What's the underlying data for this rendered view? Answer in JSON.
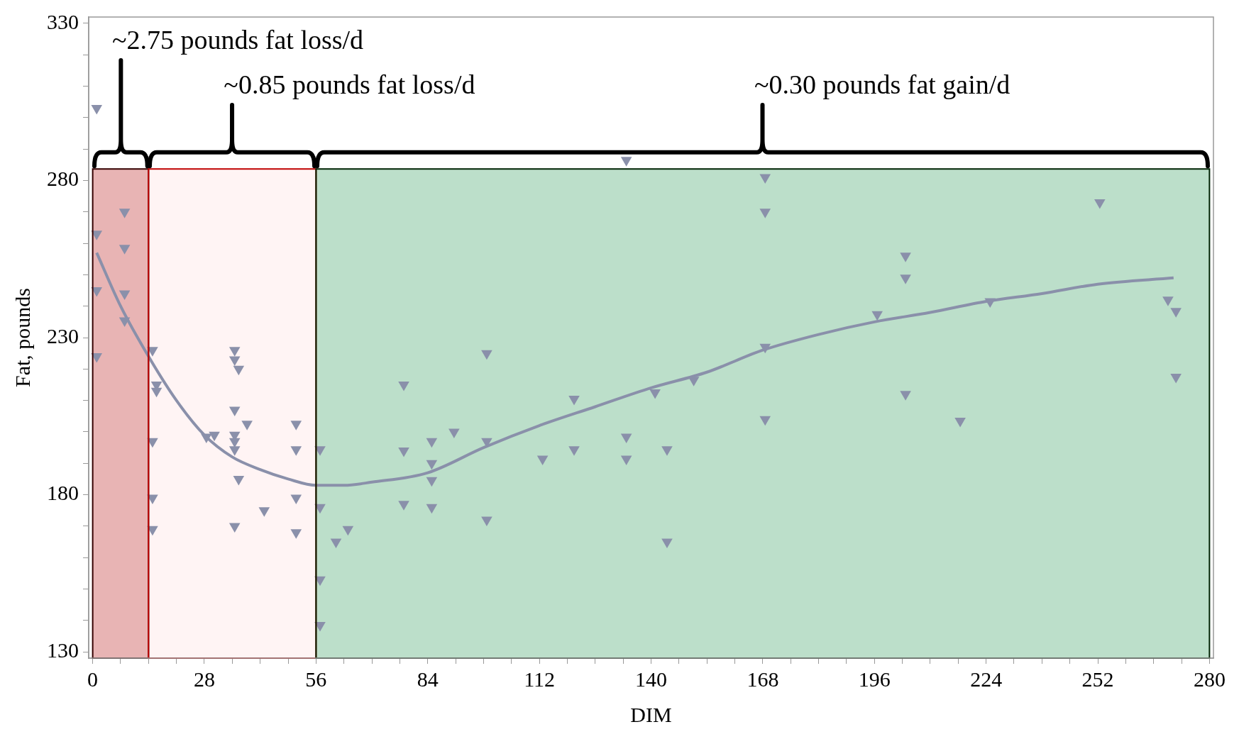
{
  "chart_data": {
    "type": "scatter",
    "xlabel": "DIM",
    "ylabel": "Fat, pounds",
    "xlim": [
      -1,
      281
    ],
    "ylim": [
      128,
      332
    ],
    "xticks": [
      0,
      {
        "value": 7,
        "label": null
      },
      {
        "value": 14,
        "label": null
      },
      {
        "value": 21,
        "label": null
      },
      28,
      {
        "value": 35,
        "label": null
      },
      {
        "value": 42,
        "label": null
      },
      {
        "value": 49,
        "label": null
      },
      56,
      {
        "value": 63,
        "label": null
      },
      {
        "value": 70,
        "label": null
      },
      {
        "value": 77,
        "label": null
      },
      84,
      {
        "value": 91,
        "label": null
      },
      {
        "value": 98,
        "label": null
      },
      {
        "value": 105,
        "label": null
      },
      112,
      {
        "value": 119,
        "label": null
      },
      {
        "value": 126,
        "label": null
      },
      {
        "value": 133,
        "label": null
      },
      140,
      {
        "value": 147,
        "label": null
      },
      {
        "value": 154,
        "label": null
      },
      {
        "value": 161,
        "label": null
      },
      168,
      {
        "value": 175,
        "label": null
      },
      {
        "value": 182,
        "label": null
      },
      {
        "value": 189,
        "label": null
      },
      196,
      {
        "value": 203,
        "label": null
      },
      {
        "value": 210,
        "label": null
      },
      {
        "value": 217,
        "label": null
      },
      224,
      {
        "value": 231,
        "label": null
      },
      {
        "value": 238,
        "label": null
      },
      {
        "value": 245,
        "label": null
      },
      252,
      {
        "value": 259,
        "label": null
      },
      {
        "value": 266,
        "label": null
      },
      {
        "value": 273,
        "label": null
      },
      280
    ],
    "yticks": [
      130,
      {
        "value": 140,
        "label": null
      },
      {
        "value": 150,
        "label": null
      },
      {
        "value": 160,
        "label": null
      },
      {
        "value": 170,
        "label": null
      },
      180,
      {
        "value": 190,
        "label": null
      },
      {
        "value": 200,
        "label": null
      },
      {
        "value": 210,
        "label": null
      },
      {
        "value": 220,
        "label": null
      },
      230,
      {
        "value": 240,
        "label": null
      },
      {
        "value": 250,
        "label": null
      },
      {
        "value": 260,
        "label": null
      },
      {
        "value": 270,
        "label": null
      },
      280,
      {
        "value": 290,
        "label": null
      },
      {
        "value": 300,
        "label": null
      },
      {
        "value": 310,
        "label": null
      },
      {
        "value": 320,
        "label": null
      },
      330
    ],
    "grid": false,
    "legend": false,
    "bands": [
      {
        "axis": "x",
        "from": 0,
        "to": 14,
        "label": "~2.75 pounds fat loss/d",
        "color": "#e8b4b4"
      },
      {
        "axis": "x",
        "from": 14,
        "to": 56,
        "label": "~0.85 pounds fat loss/d",
        "color": "#fff4f4"
      },
      {
        "axis": "x",
        "from": 56,
        "to": 280,
        "label": "~0.30 pounds fat gain/d",
        "color": "#bcdfca"
      }
    ],
    "series": [
      {
        "type": "scatter",
        "marker": "triangle",
        "color": "#8a90aa",
        "x": [
          1,
          1,
          1,
          1,
          8,
          8,
          8,
          8,
          15,
          16,
          16,
          15,
          15,
          15,
          28.5,
          30.5,
          35.6,
          35.6,
          36.6,
          35.6,
          38.7,
          35.6,
          35.6,
          35.6,
          36.6,
          35.6,
          43,
          51,
          51,
          51,
          51,
          57,
          57,
          57,
          57,
          61,
          64,
          78,
          78,
          78,
          85,
          85,
          85,
          85,
          90.6,
          98.8,
          98.8,
          98.8,
          112.8,
          120.7,
          120.7,
          133.8,
          133.8,
          133.8,
          141,
          144,
          144,
          150.7,
          168.6,
          168.6,
          168.6,
          168.6,
          196.7,
          203.8,
          203.8,
          203.8,
          217.5,
          225,
          252.5,
          269.6,
          271.6,
          271.6
        ],
        "values": [
          303,
          263,
          245,
          224,
          270,
          258.5,
          244,
          235.4,
          226,
          215,
          213,
          197,
          179,
          169,
          198.4,
          199,
          226,
          223,
          220,
          207,
          202.5,
          199,
          197,
          194.4,
          185,
          170,
          175,
          202.5,
          194.4,
          179,
          168,
          194.4,
          176,
          153,
          138.5,
          165,
          169,
          215,
          194,
          177,
          197,
          190,
          184.6,
          176,
          200,
          225,
          197,
          172,
          191.4,
          210.5,
          194.4,
          286.5,
          198.4,
          191.4,
          212.5,
          194.4,
          165,
          216.5,
          281,
          270,
          227,
          204,
          237.4,
          256,
          249,
          212,
          203.5,
          241.5,
          273,
          242,
          238.4,
          217.5
        ]
      },
      {
        "type": "line",
        "marker": "none",
        "color": "#8a90aa",
        "x": [
          1,
          7,
          14,
          21,
          28,
          35,
          42,
          49,
          56,
          63,
          70,
          84,
          98,
          112,
          126,
          140,
          154,
          168,
          182,
          196,
          210,
          224,
          238,
          252,
          271
        ],
        "values": [
          257,
          240,
          224,
          210,
          199,
          192,
          188,
          185,
          183,
          183,
          184,
          187,
          195,
          202,
          208,
          214,
          219,
          226,
          231,
          235,
          238,
          241.5,
          244,
          247,
          249
        ]
      }
    ]
  }
}
